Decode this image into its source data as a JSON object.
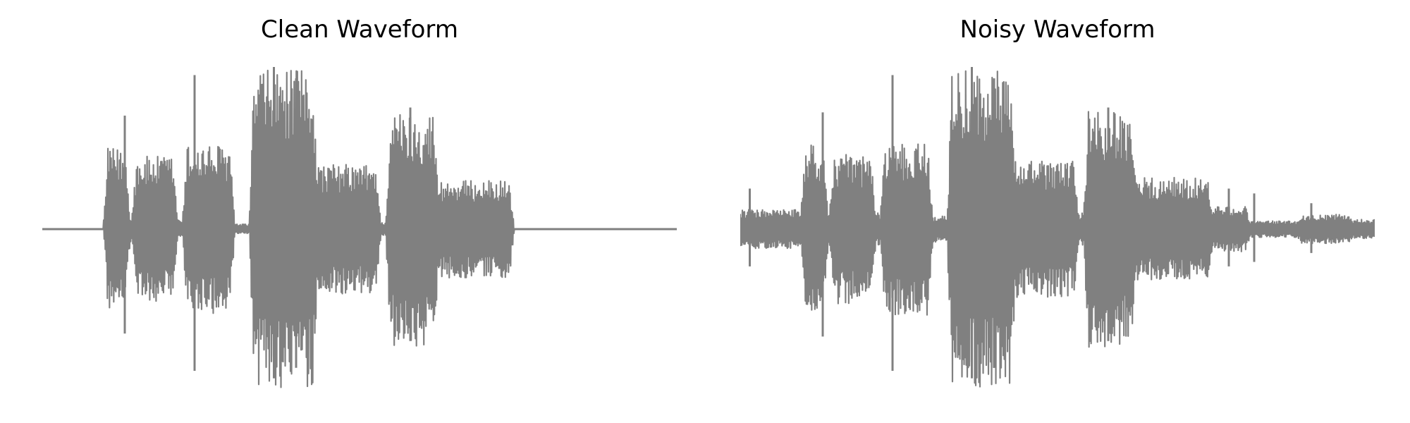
{
  "chart_data": [
    {
      "type": "line",
      "title": "Clean Waveform",
      "axes": "off",
      "grid": false,
      "color": "#808080",
      "x_range": [
        0,
        1
      ],
      "ylim": [
        -1,
        1
      ],
      "segments": [
        {
          "start": 0.0,
          "end": 0.1,
          "amp": 0.0
        },
        {
          "start": 0.1,
          "end": 0.135,
          "amp": 0.5
        },
        {
          "start": 0.135,
          "end": 0.145,
          "amp": 0.08
        },
        {
          "start": 0.145,
          "end": 0.21,
          "amp": 0.45
        },
        {
          "start": 0.21,
          "end": 0.225,
          "amp": 0.06
        },
        {
          "start": 0.225,
          "end": 0.3,
          "amp": 0.52
        },
        {
          "start": 0.3,
          "end": 0.33,
          "amp": 0.03
        },
        {
          "start": 0.33,
          "end": 0.43,
          "amp": 0.98
        },
        {
          "start": 0.43,
          "end": 0.53,
          "amp": 0.4
        },
        {
          "start": 0.53,
          "end": 0.545,
          "amp": 0.04
        },
        {
          "start": 0.545,
          "end": 0.62,
          "amp": 0.72
        },
        {
          "start": 0.62,
          "end": 0.74,
          "amp": 0.3
        },
        {
          "start": 0.74,
          "end": 1.0,
          "amp": 0.0
        }
      ],
      "spikes": [
        {
          "x": 0.13,
          "amp": 0.7
        },
        {
          "x": 0.24,
          "amp": 0.95
        },
        {
          "x": 0.365,
          "amp": 1.0
        },
        {
          "x": 0.4,
          "amp": 0.93
        },
        {
          "x": 0.58,
          "amp": 0.75
        }
      ]
    },
    {
      "type": "line",
      "title": "Noisy Waveform",
      "axes": "off",
      "grid": false,
      "color": "#808080",
      "x_range": [
        0,
        1
      ],
      "ylim": [
        -1,
        1
      ],
      "segments": [
        {
          "start": 0.0,
          "end": 0.1,
          "amp": 0.12
        },
        {
          "start": 0.1,
          "end": 0.135,
          "amp": 0.52
        },
        {
          "start": 0.135,
          "end": 0.145,
          "amp": 0.12
        },
        {
          "start": 0.145,
          "end": 0.21,
          "amp": 0.46
        },
        {
          "start": 0.21,
          "end": 0.225,
          "amp": 0.1
        },
        {
          "start": 0.225,
          "end": 0.3,
          "amp": 0.53
        },
        {
          "start": 0.3,
          "end": 0.33,
          "amp": 0.08
        },
        {
          "start": 0.33,
          "end": 0.43,
          "amp": 0.98
        },
        {
          "start": 0.43,
          "end": 0.53,
          "amp": 0.42
        },
        {
          "start": 0.53,
          "end": 0.545,
          "amp": 0.1
        },
        {
          "start": 0.545,
          "end": 0.62,
          "amp": 0.73
        },
        {
          "start": 0.62,
          "end": 0.74,
          "amp": 0.32
        },
        {
          "start": 0.74,
          "end": 0.8,
          "amp": 0.14
        },
        {
          "start": 0.8,
          "end": 0.88,
          "amp": 0.05
        },
        {
          "start": 0.88,
          "end": 0.96,
          "amp": 0.09
        },
        {
          "start": 0.96,
          "end": 1.0,
          "amp": 0.06
        }
      ],
      "spikes": [
        {
          "x": 0.015,
          "amp": 0.25
        },
        {
          "x": 0.13,
          "amp": 0.72
        },
        {
          "x": 0.24,
          "amp": 0.95
        },
        {
          "x": 0.365,
          "amp": 1.0
        },
        {
          "x": 0.4,
          "amp": 0.93
        },
        {
          "x": 0.58,
          "amp": 0.75
        },
        {
          "x": 0.77,
          "amp": 0.25
        },
        {
          "x": 0.81,
          "amp": 0.22
        },
        {
          "x": 0.9,
          "amp": 0.16
        }
      ]
    }
  ]
}
